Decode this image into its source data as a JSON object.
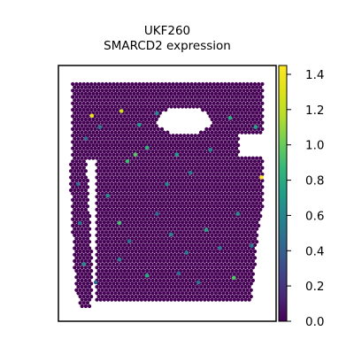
{
  "chart_data": {
    "type": "heatmap",
    "title": "UKF260",
    "subtitle": "SMARCD2 expression",
    "colormap": "viridis",
    "colorbar": {
      "min": 0.0,
      "max": 1.45,
      "ticks": [
        0.0,
        0.2,
        0.4,
        0.6,
        0.8,
        1.0,
        1.2,
        1.4
      ],
      "tick_labels": [
        "0.0",
        "0.2",
        "0.4",
        "0.6",
        "0.8",
        "1.0",
        "1.2",
        "1.4"
      ]
    },
    "background_value": 0.0,
    "grid": false,
    "x_ticks": false,
    "y_ticks": false,
    "highlighted_spots_note_free": true,
    "highlighted_spots": [
      {
        "x": 0.12,
        "y": 0.15,
        "v": 1.35
      },
      {
        "x": 0.16,
        "y": 0.2,
        "v": 0.55
      },
      {
        "x": 0.27,
        "y": 0.13,
        "v": 1.25
      },
      {
        "x": 0.36,
        "y": 0.19,
        "v": 0.7
      },
      {
        "x": 0.45,
        "y": 0.14,
        "v": 0.6
      },
      {
        "x": 0.09,
        "y": 0.25,
        "v": 0.45
      },
      {
        "x": 0.3,
        "y": 0.35,
        "v": 0.9
      },
      {
        "x": 0.34,
        "y": 0.32,
        "v": 0.95
      },
      {
        "x": 0.4,
        "y": 0.29,
        "v": 0.85
      },
      {
        "x": 0.55,
        "y": 0.32,
        "v": 0.7
      },
      {
        "x": 0.62,
        "y": 0.4,
        "v": 0.55
      },
      {
        "x": 0.72,
        "y": 0.3,
        "v": 0.6
      },
      {
        "x": 0.82,
        "y": 0.16,
        "v": 0.8
      },
      {
        "x": 0.95,
        "y": 0.2,
        "v": 0.75
      },
      {
        "x": 0.98,
        "y": 0.42,
        "v": 1.45
      },
      {
        "x": 0.2,
        "y": 0.5,
        "v": 0.65
      },
      {
        "x": 0.26,
        "y": 0.62,
        "v": 0.9
      },
      {
        "x": 0.31,
        "y": 0.7,
        "v": 0.5
      },
      {
        "x": 0.45,
        "y": 0.58,
        "v": 0.45
      },
      {
        "x": 0.52,
        "y": 0.67,
        "v": 0.6
      },
      {
        "x": 0.6,
        "y": 0.75,
        "v": 0.55
      },
      {
        "x": 0.7,
        "y": 0.65,
        "v": 0.75
      },
      {
        "x": 0.77,
        "y": 0.73,
        "v": 0.5
      },
      {
        "x": 0.86,
        "y": 0.58,
        "v": 0.65
      },
      {
        "x": 0.84,
        "y": 0.86,
        "v": 0.95
      },
      {
        "x": 0.4,
        "y": 0.85,
        "v": 0.8
      },
      {
        "x": 0.26,
        "y": 0.78,
        "v": 0.55
      },
      {
        "x": 0.06,
        "y": 0.62,
        "v": 0.5
      },
      {
        "x": 0.08,
        "y": 0.8,
        "v": 0.6
      },
      {
        "x": 0.05,
        "y": 0.45,
        "v": 0.4
      },
      {
        "x": 0.14,
        "y": 0.88,
        "v": 0.45
      },
      {
        "x": 0.66,
        "y": 0.88,
        "v": 0.5
      },
      {
        "x": 0.5,
        "y": 0.45,
        "v": 0.6
      },
      {
        "x": 0.56,
        "y": 0.84,
        "v": 0.45
      },
      {
        "x": 0.93,
        "y": 0.72,
        "v": 0.55
      }
    ]
  }
}
